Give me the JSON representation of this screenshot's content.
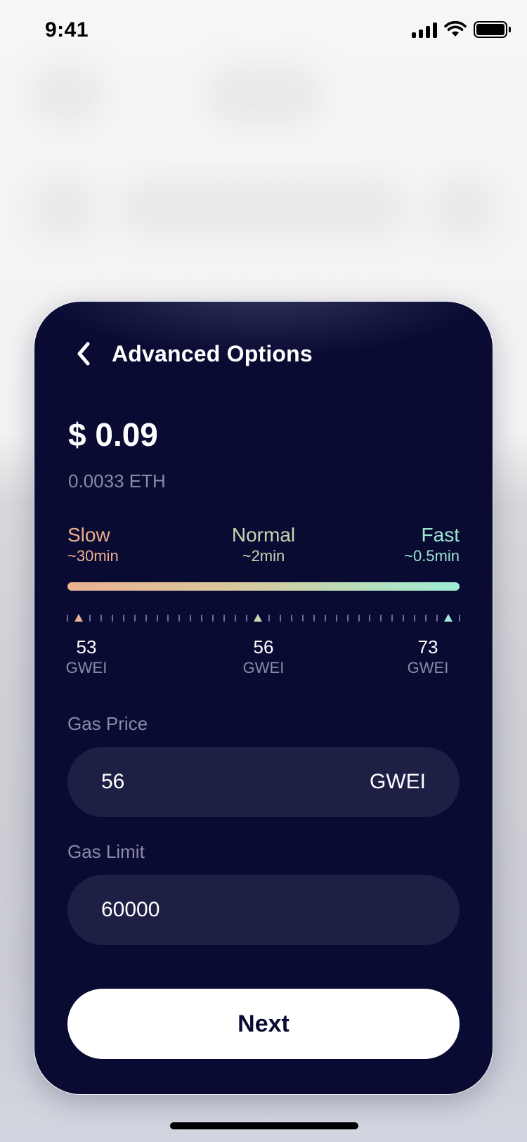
{
  "status_bar": {
    "time": "9:41"
  },
  "sheet": {
    "title": "Advanced Options",
    "amount_usd": "$ 0.09",
    "amount_eth": "0.0033 ETH",
    "speeds": [
      {
        "name": "Slow",
        "time": "~30min",
        "color": "#eab08c"
      },
      {
        "name": "Normal",
        "time": "~2min",
        "color": "#c9d6b0"
      },
      {
        "name": "Fast",
        "time": "~0.5min",
        "color": "#9be6cf"
      }
    ],
    "gwei_presets": [
      {
        "value": "53",
        "unit": "GWEI"
      },
      {
        "value": "56",
        "unit": "GWEI"
      },
      {
        "value": "73",
        "unit": "GWEI"
      }
    ],
    "gas_price": {
      "label": "Gas Price",
      "value": "56",
      "unit": "GWEI"
    },
    "gas_limit": {
      "label": "Gas Limit",
      "value": "60000"
    },
    "next_label": "Next"
  },
  "colors": {
    "sheet_bg": "#0a0b33",
    "field_bg": "#1d1f45",
    "muted_text": "#8a8ba5",
    "gradient_start": "#eab292",
    "gradient_end": "#9eebd6"
  }
}
